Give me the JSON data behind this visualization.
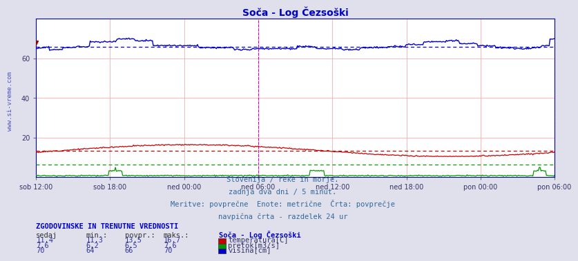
{
  "title": "Soča - Log Čezsoški",
  "subtitle_lines": [
    "Slovenija / reke in morje.",
    "zadnja dva dni / 5 minut.",
    "Meritve: povprečne  Enote: metrične  Črta: povprečje",
    "navpična črta - razdelek 24 ur"
  ],
  "table_header": "ZGODOVINSKE IN TRENUTNE VREDNOSTI",
  "table_cols": [
    "sedaj",
    "min.:",
    "povpr.:",
    "maks.:"
  ],
  "table_rows": [
    [
      "11,4",
      "11,3",
      "13,5",
      "16,7",
      "temperatura[C]",
      "#cc0000"
    ],
    [
      "7,6",
      "6,2",
      "6,5",
      "7,6",
      "pretok[m3/s]",
      "#009900"
    ],
    [
      "70",
      "64",
      "66",
      "70",
      "višina[cm]",
      "#0000cc"
    ]
  ],
  "station_label": "Soča - Log Čezsoški",
  "n_points": 576,
  "ylim": [
    0,
    80
  ],
  "yticks": [
    20,
    40,
    60
  ],
  "xtick_labels": [
    "sob 12:00",
    "sob 18:00",
    "ned 00:00",
    "ned 06:00",
    "ned 12:00",
    "ned 18:00",
    "pon 00:00",
    "pon 06:00"
  ],
  "grid_color": "#ffaaaa",
  "bg_color": "#dfe0ec",
  "plot_bg": "#ffffff",
  "temp_avg": 13.5,
  "flow_avg": 6.5,
  "level_avg": 66,
  "watermark": "www.si-vreme.com",
  "temp_color": "#cc0000",
  "flow_color": "#009900",
  "level_color": "#0000cc",
  "magenta_vline_idx": 3,
  "magenta_vline_right": true
}
